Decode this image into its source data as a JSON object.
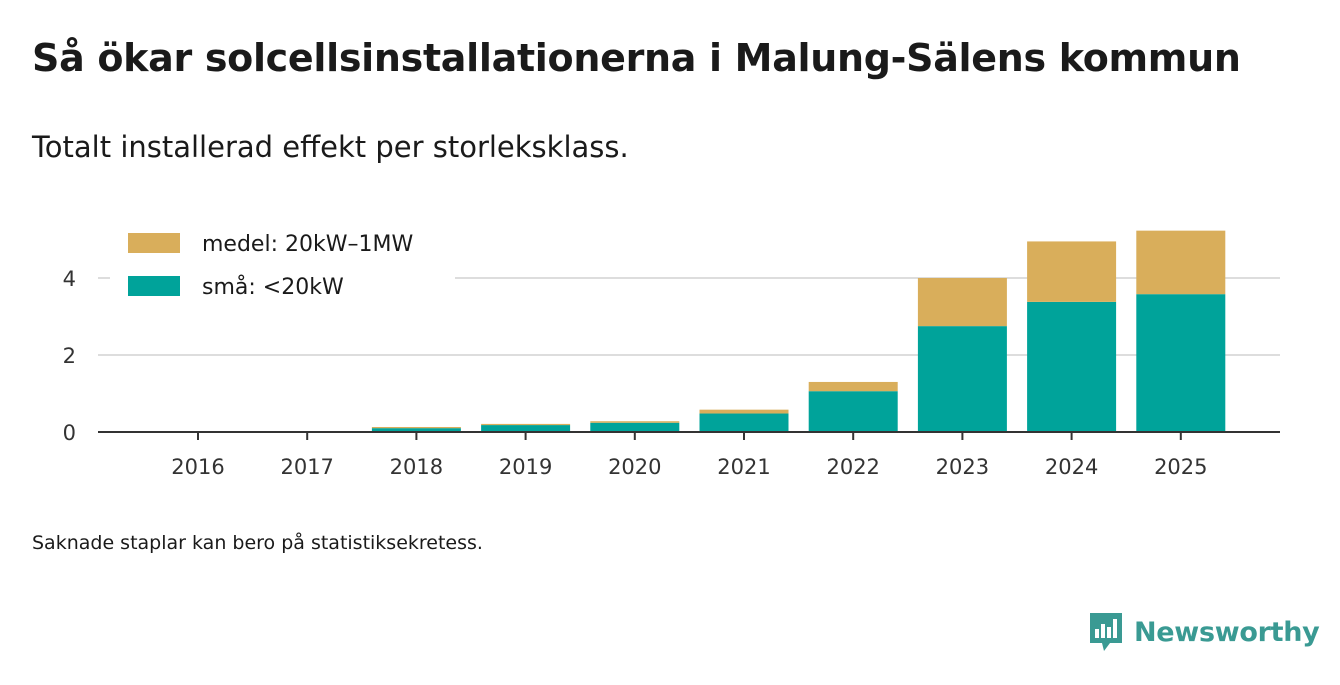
{
  "title": "Så ökar solcellsinstallationerna i Malung-Sälens kommun",
  "subtitle": "Totalt installerad effekt per storleksklass.",
  "note": "Saknade staplar kan bero på statistiksekretess.",
  "brand": {
    "name": "Newsworthy"
  },
  "colors": {
    "small": "#00a39a",
    "medium": "#d9ae5b",
    "grid": "#dddddd",
    "axis": "#333333"
  },
  "chart_data": {
    "type": "bar",
    "stacked": true,
    "categories": [
      "2016",
      "2017",
      "2018",
      "2019",
      "2020",
      "2021",
      "2022",
      "2023",
      "2024",
      "2025"
    ],
    "series": [
      {
        "name": "små: <20kW",
        "key": "small",
        "values": [
          0,
          0,
          0.1,
          0.18,
          0.24,
          0.48,
          1.06,
          2.75,
          3.38,
          3.58
        ]
      },
      {
        "name": "medel: 20kW–1MW",
        "key": "medium",
        "values": [
          0,
          0,
          0.03,
          0.03,
          0.04,
          0.1,
          0.24,
          1.25,
          1.57,
          1.65
        ]
      }
    ],
    "yticks": [
      0,
      2,
      4
    ],
    "ylim": [
      0,
      5.3
    ],
    "grid": true,
    "legend_position": "top-left"
  }
}
